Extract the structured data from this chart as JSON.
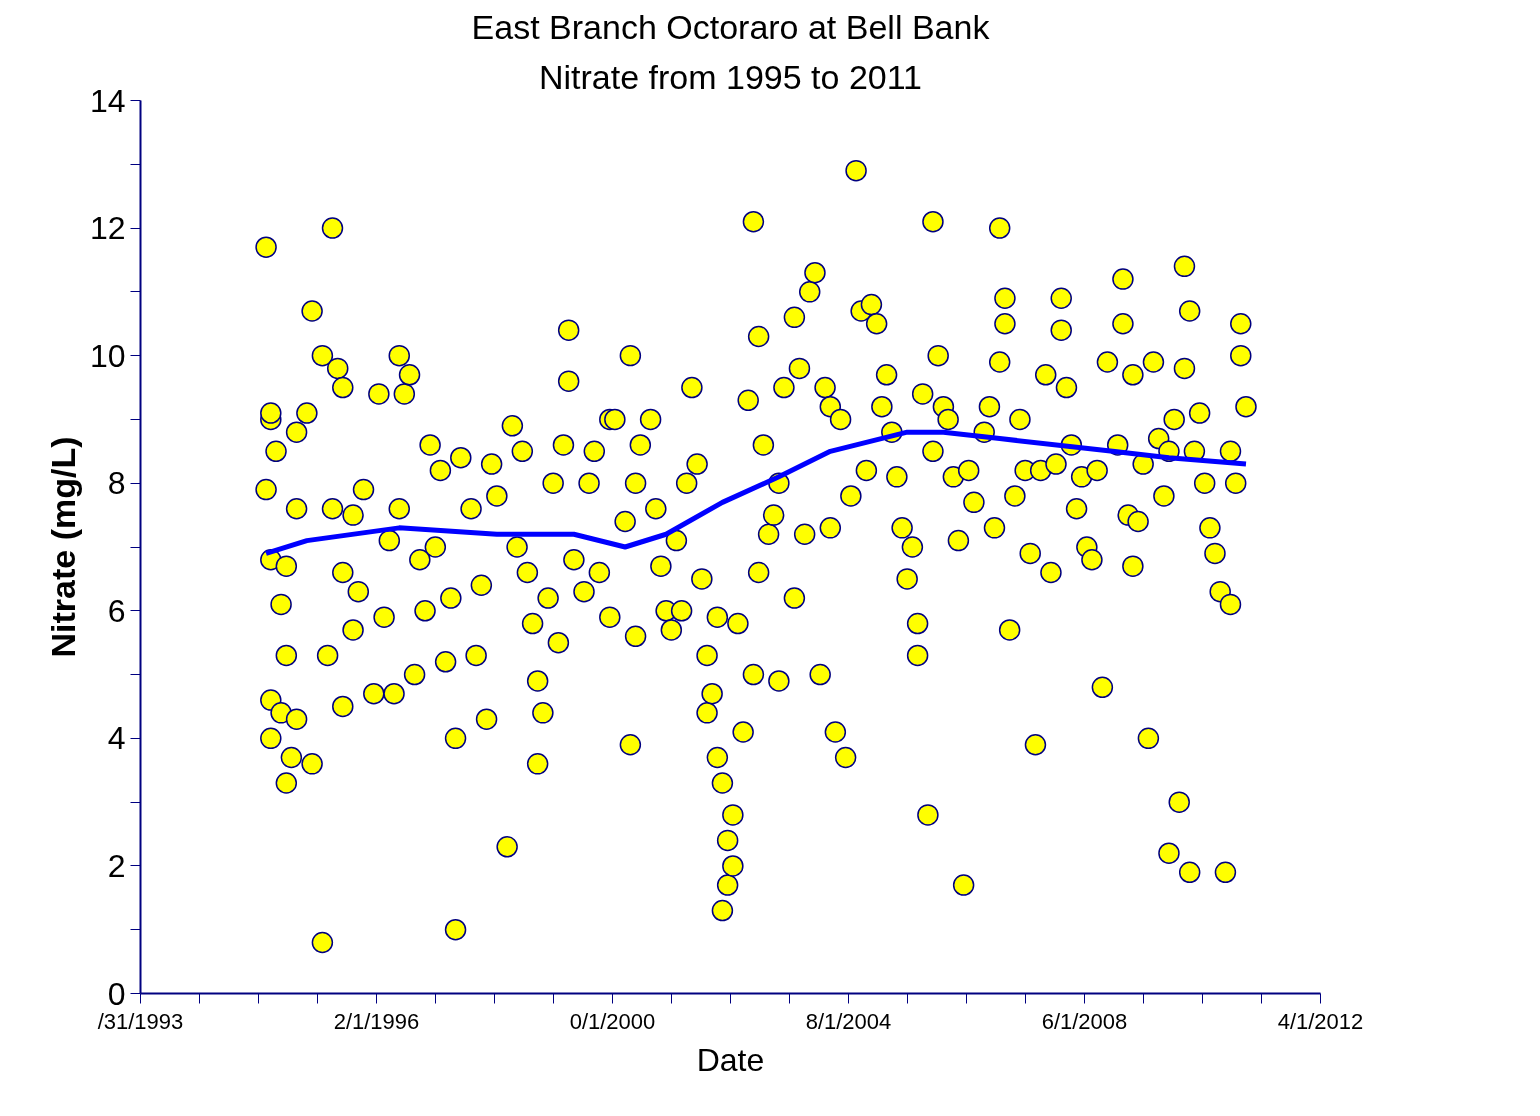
{
  "chart_data": {
    "type": "scatter",
    "title": "East Branch Octoraro at Bell Bank",
    "subtitle": "Nitrate from 1995 to 2011",
    "xlabel": "Date",
    "ylabel": "Nitrate (mg/L)",
    "xlim": [
      "1993-01-31",
      "2012-04-01"
    ],
    "xticks": [
      {
        "value": "1993-01-31",
        "label": "/31/1993"
      },
      {
        "value": "1994-01-16",
        "label": null
      },
      {
        "value": "1995-01-01",
        "label": null
      },
      {
        "value": "1995-12-17",
        "label": null
      },
      {
        "value": "1996-12-01",
        "label": "2/1/1996"
      },
      {
        "value": "1997-11-16",
        "label": null
      },
      {
        "value": "1998-11-01",
        "label": null
      },
      {
        "value": "1999-10-17",
        "label": null
      },
      {
        "value": "2000-10-01",
        "label": "0/1/2000"
      },
      {
        "value": "2001-09-16",
        "label": null
      },
      {
        "value": "2002-09-01",
        "label": null
      },
      {
        "value": "2003-08-17",
        "label": null
      },
      {
        "value": "2004-08-01",
        "label": "8/1/2004"
      },
      {
        "value": "2005-07-17",
        "label": null
      },
      {
        "value": "2006-07-02",
        "label": null
      },
      {
        "value": "2007-06-17",
        "label": null
      },
      {
        "value": "2008-06-01",
        "label": "6/1/2008"
      },
      {
        "value": "2009-05-17",
        "label": null
      },
      {
        "value": "2010-05-02",
        "label": null
      },
      {
        "value": "2011-04-17",
        "label": null
      },
      {
        "value": "2012-04-01",
        "label": "4/1/2012"
      }
    ],
    "ylim": [
      0,
      14
    ],
    "yticks": [
      0,
      {
        "value": 1,
        "label": null
      },
      2,
      {
        "value": 3,
        "label": null
      },
      4,
      {
        "value": 5,
        "label": null
      },
      6,
      {
        "value": 7,
        "label": null
      },
      8,
      {
        "value": 9,
        "label": null
      },
      10,
      {
        "value": 11,
        "label": null
      },
      12,
      {
        "value": 13,
        "label": null
      },
      14
    ],
    "grid": false,
    "marker": "circle",
    "series": [
      {
        "color": "#ffff00",
        "x": [
          "1995-02",
          "1995-03",
          "1995-03",
          "1995-02",
          "1995-03",
          "1995-04",
          "1995-05",
          "1995-06",
          "1995-03",
          "1995-03",
          "1995-05",
          "1995-06",
          "1995-06",
          "1995-07",
          "1995-08",
          "1995-08",
          "1995-08",
          "1995-10",
          "1995-11",
          "1995-11",
          "1996-01",
          "1996-01",
          "1996-02",
          "1996-03",
          "1996-03",
          "1996-04",
          "1996-05",
          "1996-05",
          "1996-05",
          "1996-07",
          "1996-07",
          "1996-08",
          "1996-09",
          "1996-11",
          "1996-12",
          "1997-01",
          "1997-02",
          "1997-03",
          "1997-04",
          "1997-04",
          "1997-05",
          "1997-06",
          "1997-07",
          "1997-08",
          "1997-09",
          "1997-10",
          "1997-11",
          "1997-12",
          "1998-01",
          "1998-02",
          "1998-03",
          "1998-03",
          "1998-04",
          "1998-06",
          "1998-07",
          "1998-08",
          "1998-09",
          "1998-10",
          "1998-11",
          "1999-01",
          "1999-02",
          "1999-03",
          "1999-04",
          "1999-05",
          "1999-06",
          "1999-07",
          "1999-07",
          "1999-08",
          "1999-09",
          "1999-10",
          "1999-11",
          "1999-12",
          "2000-01",
          "2000-01",
          "2000-02",
          "2000-04",
          "2000-05",
          "2000-06",
          "2000-07",
          "2000-09",
          "2000-09",
          "2000-10",
          "2000-12",
          "2001-01",
          "2001-01",
          "2001-02",
          "2001-02",
          "2001-03",
          "2001-05",
          "2001-06",
          "2001-07",
          "2001-08",
          "2001-09",
          "2001-10",
          "2001-11",
          "2001-12",
          "2002-01",
          "2002-02",
          "2002-03",
          "2002-04",
          "2002-04",
          "2002-05",
          "2002-06",
          "2002-06",
          "2002-07",
          "2002-07",
          "2002-08",
          "2002-08",
          "2002-09",
          "2002-09",
          "2002-10",
          "2002-11",
          "2002-12",
          "2003-01",
          "2003-01",
          "2003-02",
          "2003-02",
          "2003-03",
          "2003-04",
          "2003-05",
          "2003-06",
          "2003-06",
          "2003-07",
          "2003-09",
          "2003-09",
          "2003-10",
          "2003-11",
          "2003-12",
          "2004-01",
          "2004-02",
          "2004-03",
          "2004-04",
          "2004-04",
          "2004-05",
          "2004-06",
          "2004-07",
          "2004-08",
          "2004-09",
          "2004-10",
          "2004-11",
          "2004-12",
          "2005-01",
          "2005-02",
          "2005-03",
          "2005-04",
          "2005-05",
          "2005-06",
          "2005-07",
          "2005-08",
          "2005-09",
          "2005-09",
          "2005-10",
          "2005-11",
          "2005-12",
          "2005-12",
          "2006-01",
          "2006-02",
          "2006-03",
          "2006-04",
          "2006-05",
          "2006-06",
          "2006-07",
          "2006-08",
          "2006-10",
          "2006-11",
          "2006-12",
          "2007-01",
          "2007-01",
          "2007-02",
          "2007-02",
          "2007-03",
          "2007-04",
          "2007-05",
          "2007-06",
          "2007-07",
          "2007-08",
          "2007-09",
          "2007-10",
          "2007-11",
          "2007-12",
          "2008-01",
          "2008-01",
          "2008-02",
          "2008-03",
          "2008-04",
          "2008-05",
          "2008-06",
          "2008-07",
          "2008-08",
          "2008-09",
          "2008-10",
          "2008-12",
          "2009-01",
          "2009-01",
          "2009-02",
          "2009-03",
          "2009-03",
          "2009-04",
          "2009-05",
          "2009-06",
          "2009-07",
          "2009-08",
          "2009-09",
          "2009-10",
          "2009-10",
          "2009-11",
          "2009-12",
          "2010-01",
          "2010-01",
          "2010-02",
          "2010-02",
          "2010-03",
          "2010-04",
          "2010-05",
          "2010-06",
          "2010-07",
          "2010-08",
          "2010-09",
          "2010-10",
          "2010-10",
          "2010-11",
          "2010-12",
          "2010-12",
          "2011-01"
        ],
        "values": [
          11.7,
          9.0,
          9.1,
          7.9,
          6.8,
          8.5,
          6.1,
          6.7,
          4.6,
          4.0,
          4.4,
          3.3,
          5.3,
          3.7,
          4.3,
          7.6,
          8.8,
          9.1,
          3.6,
          10.7,
          0.8,
          10.0,
          5.3,
          7.6,
          12.0,
          9.8,
          9.5,
          6.6,
          4.5,
          5.7,
          7.5,
          6.3,
          7.9,
          4.7,
          9.4,
          5.9,
          7.1,
          4.7,
          7.6,
          10.0,
          9.4,
          9.7,
          5.0,
          6.8,
          6.0,
          8.6,
          7.0,
          8.2,
          5.2,
          6.2,
          1.0,
          4.0,
          8.4,
          7.6,
          5.3,
          6.4,
          4.3,
          8.3,
          7.8,
          2.3,
          8.9,
          7.0,
          8.5,
          6.6,
          5.8,
          4.9,
          3.6,
          4.4,
          6.2,
          8.0,
          5.5,
          8.6,
          10.4,
          9.6,
          6.8,
          6.3,
          8.0,
          8.5,
          6.6,
          9.0,
          5.9,
          9.0,
          7.4,
          10.0,
          3.9,
          8.0,
          5.6,
          8.6,
          9.0,
          7.6,
          6.7,
          6.0,
          5.7,
          7.1,
          6.0,
          8.0,
          9.5,
          8.3,
          6.5,
          5.3,
          4.4,
          4.7,
          5.9,
          3.7,
          3.3,
          1.3,
          2.4,
          1.7,
          2.0,
          2.8,
          5.8,
          4.1,
          9.3,
          5.0,
          12.1,
          10.3,
          6.6,
          8.6,
          7.2,
          7.5,
          4.9,
          8.0,
          9.5,
          6.2,
          10.6,
          9.8,
          7.2,
          11.0,
          11.3,
          5.0,
          9.5,
          9.2,
          7.3,
          4.1,
          9.0,
          3.7,
          7.8,
          12.9,
          10.7,
          8.2,
          10.8,
          10.5,
          9.2,
          9.7,
          8.8,
          8.1,
          7.3,
          6.5,
          7.0,
          5.3,
          5.8,
          9.4,
          2.8,
          12.1,
          8.5,
          10.0,
          9.2,
          9.0,
          8.1,
          7.1,
          1.7,
          8.2,
          7.7,
          8.8,
          9.2,
          7.3,
          9.9,
          12.0,
          10.9,
          10.5,
          5.7,
          7.8,
          9.0,
          8.2,
          6.9,
          3.9,
          8.2,
          9.7,
          6.6,
          8.3,
          10.9,
          10.4,
          9.5,
          8.6,
          7.6,
          8.1,
          7.0,
          6.8,
          8.2,
          4.8,
          9.9,
          8.6,
          11.2,
          10.5,
          7.5,
          9.7,
          6.7,
          7.4,
          8.3,
          4.0,
          9.9,
          8.7,
          7.8,
          8.5,
          2.2,
          9.0,
          3.0,
          9.8,
          11.4,
          10.7,
          1.9,
          8.5,
          9.1,
          8.0,
          7.3,
          6.9,
          6.3,
          1.9,
          6.1,
          8.5,
          8.0,
          10.0,
          10.5,
          9.2
        ]
      },
      {
        "type": "line",
        "marker": "none",
        "line_style": "solid",
        "color": "#0000ff",
        "x": [
          "1995-02",
          "1995-10",
          "1997-04",
          "1998-11",
          "2000-02",
          "2000-12",
          "2001-08",
          "2002-07",
          "2003-06",
          "2004-04",
          "2005-07",
          "2006-02",
          "2007-01",
          "2008-11",
          "2009-10",
          "2011-01"
        ],
        "values": [
          6.9,
          7.1,
          7.3,
          7.2,
          7.2,
          7.0,
          7.2,
          7.7,
          8.1,
          8.5,
          8.8,
          8.8,
          8.7,
          8.5,
          8.4,
          8.3
        ]
      }
    ]
  }
}
